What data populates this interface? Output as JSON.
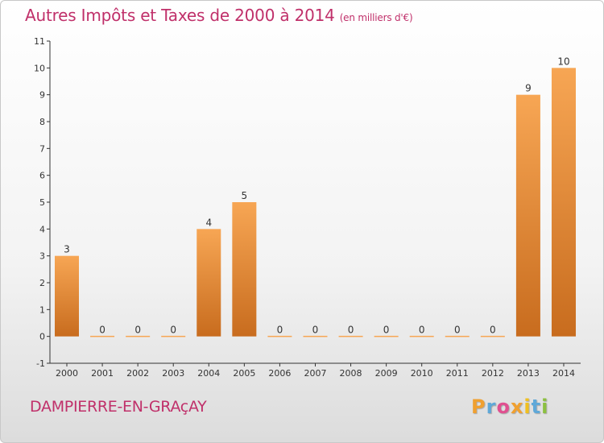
{
  "title": "Autres Impôts et Taxes de 2000 à 2014",
  "unit": "(en milliers d'€)",
  "commune": "DAMPIERRE-EN-GRAçAY",
  "logo": {
    "text": "Proxiti",
    "letter_colors": [
      "#f0a030",
      "#5fa8d8",
      "#e05090",
      "#f0a030",
      "#f0c020",
      "#5fa8d8",
      "#8cc040"
    ]
  },
  "colors": {
    "bar_top": "#f7a654",
    "bar_bottom": "#c86c1e",
    "axis": "#333333",
    "title": "#c0306a"
  },
  "chart_data": {
    "type": "bar",
    "categories": [
      "2000",
      "2001",
      "2002",
      "2003",
      "2004",
      "2005",
      "2006",
      "2007",
      "2008",
      "2009",
      "2010",
      "2011",
      "2012",
      "2013",
      "2014"
    ],
    "values": [
      3,
      0,
      0,
      0,
      4,
      5,
      0,
      0,
      0,
      0,
      0,
      0,
      0,
      9,
      10
    ],
    "y_ticks": [
      "-1",
      "0",
      "1",
      "2",
      "3",
      "4",
      "5",
      "6",
      "7",
      "8",
      "9",
      "10",
      "11"
    ],
    "ylim": [
      -1,
      11
    ],
    "grid": false
  }
}
